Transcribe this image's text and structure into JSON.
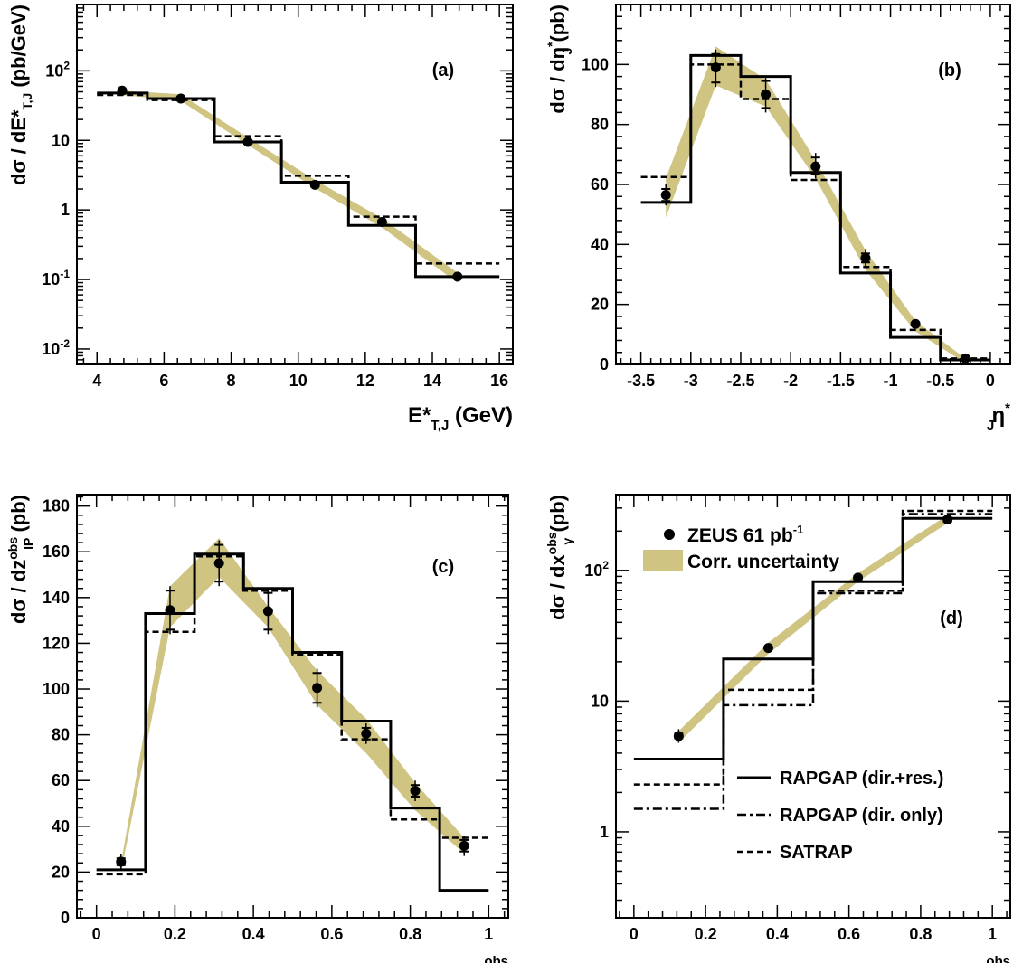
{
  "colors": {
    "band": "#cfc482",
    "ink": "#000000"
  },
  "legend": {
    "zeus": {
      "name": "ZEUS 61 pb",
      "sup": "-1"
    },
    "band": "Corr. uncertainty",
    "solid": "RAPGAP (dir.+res.)",
    "dashdot": "RAPGAP (dir. only)",
    "dash": "SATRAP"
  },
  "chart_data": [
    {
      "id": "a",
      "panel_label": "(a)",
      "type": "line",
      "yscale": "log",
      "xlim": [
        3.4,
        16.4
      ],
      "ylim": [
        0.006,
        900
      ],
      "xticks": [
        4,
        6,
        8,
        10,
        12,
        14,
        16
      ],
      "xticklabels": [
        "4",
        "6",
        "8",
        "10",
        "12",
        "14",
        "16"
      ],
      "yticks": [
        0.01,
        0.1,
        1,
        10,
        100
      ],
      "yticklabels": [
        {
          "base": "10",
          "sup": "-2"
        },
        {
          "base": "10",
          "sup": "-1"
        },
        {
          "base": "1",
          "sup": ""
        },
        {
          "base": "10",
          "sup": ""
        },
        {
          "base": "10",
          "sup": "2"
        }
      ],
      "xlabel": {
        "main": "E*",
        "sub": "T,J",
        "after": " (GeV)"
      },
      "ylabel": {
        "pre": "dσ / dE*",
        "sub": "T,J",
        "after": " (pb/GeV)"
      },
      "bins": [
        4,
        5.5,
        7.5,
        9.5,
        11.5,
        13.5,
        16
      ],
      "rapgap_res": [
        48,
        40,
        9.5,
        2.5,
        0.6,
        0.11
      ],
      "satrap": [
        45,
        38,
        11.5,
        3.1,
        0.8,
        0.17
      ],
      "points": {
        "x": [
          4.75,
          6.5,
          8.5,
          10.5,
          12.5,
          14.75
        ],
        "y": [
          52,
          40,
          9.5,
          2.3,
          0.67,
          0.11
        ],
        "err": [
          [
            47,
            57
          ],
          [
            36.5,
            44
          ],
          [
            8.7,
            10.4
          ],
          [
            2.1,
            2.5
          ],
          [
            0.61,
            0.73
          ],
          [
            0.096,
            0.126
          ]
        ]
      },
      "band": {
        "x": [
          4.75,
          6.5,
          8.5,
          10.5,
          12.5,
          14.75
        ],
        "lo": [
          45,
          37,
          8.6,
          2.05,
          0.56,
          0.09
        ],
        "hi": [
          52,
          46,
          11,
          2.7,
          0.76,
          0.125
        ]
      }
    },
    {
      "id": "b",
      "panel_label": "(b)",
      "type": "line",
      "yscale": "linear",
      "xlim": [
        -3.75,
        0.2
      ],
      "ylim": [
        0,
        120
      ],
      "xticks": [
        -3.5,
        -3,
        -2.5,
        -2,
        -1.5,
        -1,
        -0.5,
        0
      ],
      "xticklabels": [
        "-3.5",
        "-3",
        "-2.5",
        "-2",
        "-1.5",
        "-1",
        "-0.5",
        "0"
      ],
      "yticks": [
        0,
        20,
        40,
        60,
        80,
        100
      ],
      "yticklabels": [
        {
          "base": "0",
          "sup": ""
        },
        {
          "base": "20",
          "sup": ""
        },
        {
          "base": "40",
          "sup": ""
        },
        {
          "base": "60",
          "sup": ""
        },
        {
          "base": "80",
          "sup": ""
        },
        {
          "base": "100",
          "sup": ""
        }
      ],
      "xlabel": {
        "main": "η",
        "sub": "J",
        "sup": "*"
      },
      "ylabel": {
        "pre": "dσ / dη",
        "sup": "*",
        "sub": "J",
        "after": " (pb)"
      },
      "bins": [
        -3.5,
        -3,
        -2.5,
        -2,
        -1.5,
        -1,
        -0.5,
        0
      ],
      "rapgap_res": [
        54,
        103,
        96,
        64,
        30.5,
        9,
        1.5
      ],
      "satrap": [
        62.5,
        100,
        88.5,
        61.5,
        32.5,
        11.5,
        2
      ],
      "points": {
        "x": [
          -3.25,
          -2.75,
          -2.25,
          -1.75,
          -1.25,
          -0.75,
          -0.25
        ],
        "y": [
          56.5,
          99,
          90,
          66,
          35.5,
          13.5,
          2
        ],
        "err": [
          [
            53,
            60
          ],
          [
            92.5,
            105
          ],
          [
            84,
            96
          ],
          [
            62,
            70.5
          ],
          [
            32.5,
            38.5
          ],
          [
            12,
            15
          ],
          [
            1.2,
            2.8
          ]
        ]
      },
      "band": {
        "x": [
          -3.25,
          -2.75,
          -2.25,
          -1.75,
          -1.25,
          -0.75,
          -0.25
        ],
        "lo": [
          49,
          93,
          86,
          62,
          31.5,
          11,
          0.5
        ],
        "hi": [
          62,
          106,
          95,
          68,
          38,
          14.5,
          2
        ]
      }
    },
    {
      "id": "c",
      "panel_label": "(c)",
      "type": "line",
      "yscale": "linear",
      "xlim": [
        -0.05,
        1.05
      ],
      "ylim": [
        0,
        185
      ],
      "xticks": [
        0,
        0.2,
        0.4,
        0.6,
        0.8,
        1
      ],
      "xticklabels": [
        "0",
        "0.2",
        "0.4",
        "0.6",
        "0.8",
        "1"
      ],
      "yticks": [
        0,
        20,
        40,
        60,
        80,
        100,
        120,
        140,
        160,
        180
      ],
      "yticklabels": [
        {
          "base": "0",
          "sup": ""
        },
        {
          "base": "20",
          "sup": ""
        },
        {
          "base": "40",
          "sup": ""
        },
        {
          "base": "60",
          "sup": ""
        },
        {
          "base": "80",
          "sup": ""
        },
        {
          "base": "100",
          "sup": ""
        },
        {
          "base": "120",
          "sup": ""
        },
        {
          "base": "140",
          "sup": ""
        },
        {
          "base": "160",
          "sup": ""
        },
        {
          "base": "180",
          "sup": ""
        }
      ],
      "xlabel": {
        "main": "z",
        "sup": "obs",
        "sub": "IP"
      },
      "ylabel": {
        "pre": "dσ / dz",
        "sup": "obs",
        "sub": "IP",
        "after": " (pb)"
      },
      "bins": [
        0,
        0.125,
        0.25,
        0.375,
        0.5,
        0.625,
        0.75,
        0.875,
        1
      ],
      "rapgap_res": [
        21,
        133,
        159,
        144,
        116,
        86,
        48,
        12
      ],
      "satrap": [
        19,
        125,
        158,
        143,
        115,
        78,
        43,
        35
      ],
      "points": {
        "x": [
          0.0625,
          0.1875,
          0.3125,
          0.4375,
          0.5625,
          0.6875,
          0.8125,
          0.9375
        ],
        "y": [
          24.5,
          134.5,
          155,
          134,
          100.5,
          80.5,
          55.5,
          31.5
        ],
        "err": [
          [
            21,
            28
          ],
          [
            124,
            145
          ],
          [
            145,
            165
          ],
          [
            124,
            144
          ],
          [
            92,
            109
          ],
          [
            76,
            85
          ],
          [
            51,
            60
          ],
          [
            27,
            36
          ]
        ]
      },
      "band": {
        "x": [
          0.0625,
          0.1875,
          0.3125,
          0.4375,
          0.5625,
          0.6875,
          0.8125,
          0.9375
        ],
        "lo": [
          20,
          127,
          149,
          127,
          93,
          72,
          47,
          28
        ],
        "hi": [
          24,
          145,
          166,
          136,
          108,
          87,
          59,
          35
        ]
      }
    },
    {
      "id": "d",
      "panel_label": "(d)",
      "type": "line",
      "yscale": "log",
      "xlim": [
        -0.05,
        1.05
      ],
      "ylim": [
        0.22,
        380
      ],
      "xticks": [
        0,
        0.2,
        0.4,
        0.6,
        0.8,
        1
      ],
      "xticklabels": [
        "0",
        "0.2",
        "0.4",
        "0.6",
        "0.8",
        "1"
      ],
      "yticks": [
        1,
        10,
        100
      ],
      "yticklabels": [
        {
          "base": "1",
          "sup": ""
        },
        {
          "base": "10",
          "sup": ""
        },
        {
          "base": "10",
          "sup": "2"
        }
      ],
      "xlabel": {
        "main": "x",
        "sup": "obs",
        "sub": "γ"
      },
      "ylabel": {
        "pre": "dσ / dx",
        "sup": "obs",
        "sub": "γ",
        "after": " (pb)"
      },
      "bins": [
        0,
        0.25,
        0.5,
        0.75,
        1
      ],
      "rapgap_res": [
        3.6,
        21,
        82,
        250
      ],
      "rapgap_dir": [
        1.5,
        9.3,
        67,
        270
      ],
      "satrap": [
        2.3,
        12.2,
        70,
        285
      ],
      "points": {
        "x": [
          0.125,
          0.375,
          0.625,
          0.875
        ],
        "y": [
          5.4,
          25.5,
          88,
          245
        ],
        "err": [
          [
            4.8,
            6.1
          ],
          [
            24,
            27
          ],
          [
            84,
            92
          ],
          [
            235,
            255
          ]
        ]
      },
      "band": {
        "x": [
          0.125,
          0.375,
          0.625,
          0.875
        ],
        "lo": [
          4.8,
          23,
          82,
          230
        ],
        "hi": [
          5.9,
          28,
          95,
          265
        ]
      }
    }
  ]
}
